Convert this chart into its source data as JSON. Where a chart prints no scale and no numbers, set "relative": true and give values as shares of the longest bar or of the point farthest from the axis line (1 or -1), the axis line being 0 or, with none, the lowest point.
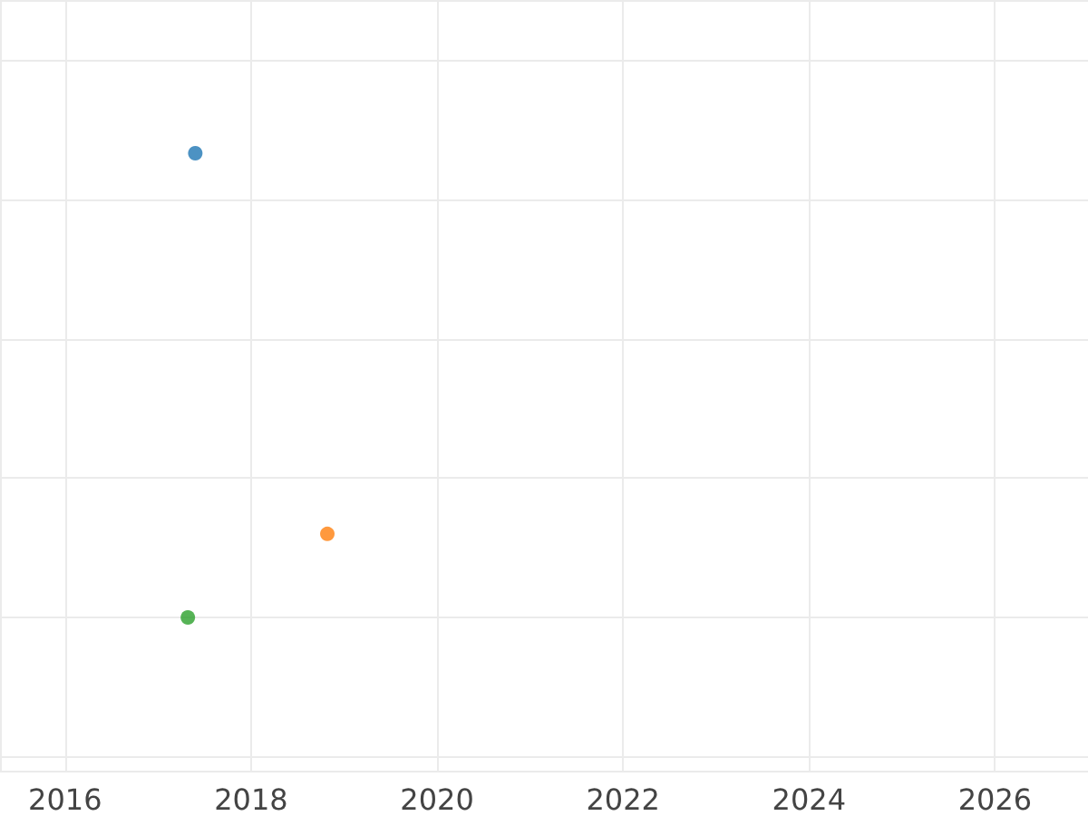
{
  "chart_data": {
    "type": "scatter",
    "relative": true,
    "x": [
      2017.4,
      2018.82,
      2017.32
    ],
    "values": [
      1,
      0.18,
      0
    ],
    "colors": [
      "#1f77b4",
      "#ff7f0e",
      "#2ca02c"
    ],
    "xlim": [
      2015.3,
      2027.0
    ],
    "xticks": [
      2016,
      2018,
      2020,
      2022,
      2024,
      2026
    ],
    "grid": true,
    "marker": "circle"
  }
}
